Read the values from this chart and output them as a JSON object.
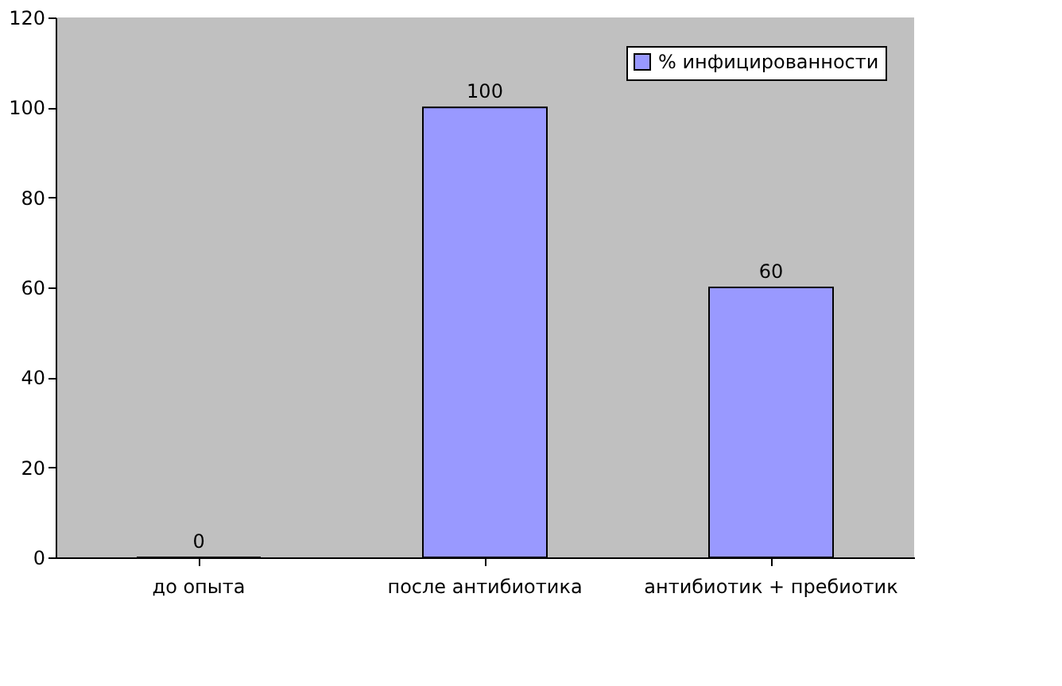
{
  "chart_data": {
    "type": "bar",
    "categories": [
      "до опыта",
      "после антибиотика",
      "антибиотик + пребиотик"
    ],
    "series": [
      {
        "name": "% инфицированности",
        "color": "#9999ff",
        "values": [
          0,
          100,
          60
        ]
      }
    ],
    "ylim": [
      0,
      120
    ],
    "yticks": [
      0,
      20,
      40,
      60,
      80,
      100,
      120
    ],
    "data_labels": true,
    "grid": false,
    "legend": "top right"
  }
}
